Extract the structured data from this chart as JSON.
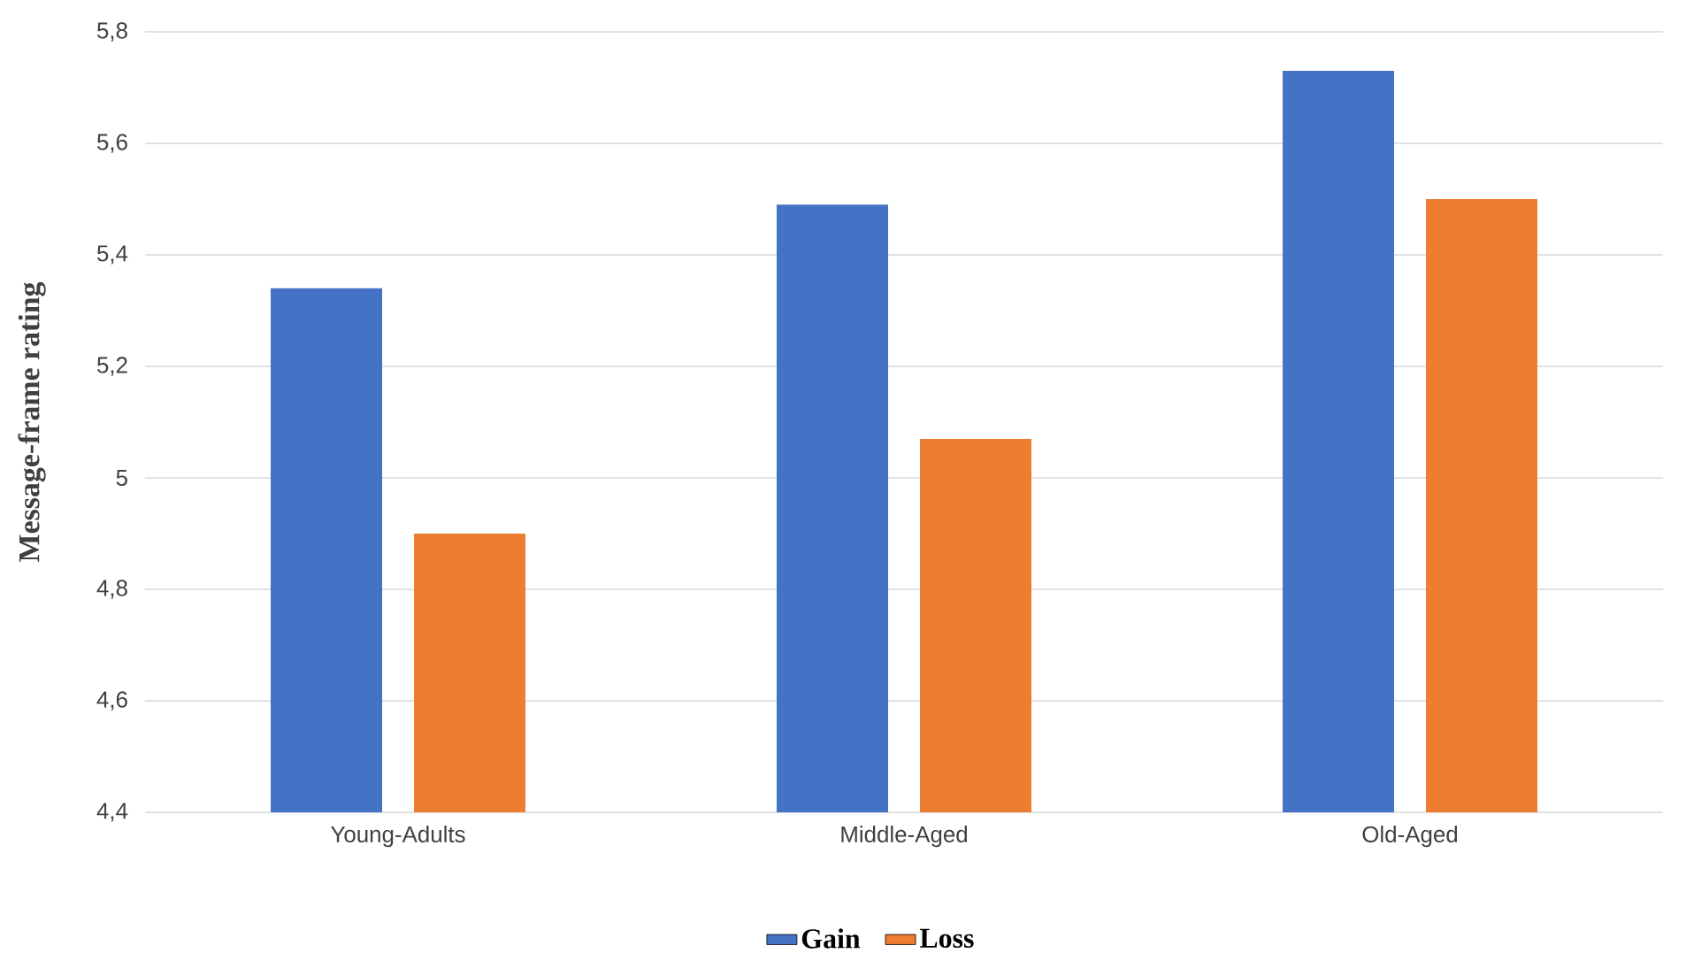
{
  "chart_data": {
    "type": "bar",
    "ylabel": "Message-frame rating",
    "categories": [
      "Young-Adults",
      "Middle-Aged",
      "Old-Aged"
    ],
    "series": [
      {
        "name": "Gain",
        "color": "#4472c4",
        "values": [
          5.34,
          5.49,
          5.73
        ]
      },
      {
        "name": "Loss",
        "color": "#ed7d31",
        "values": [
          4.9,
          5.07,
          5.5
        ]
      }
    ],
    "ylim": [
      4.4,
      5.8
    ],
    "yticks": [
      {
        "value": 4.4,
        "label": "4,4"
      },
      {
        "value": 4.6,
        "label": "4,6"
      },
      {
        "value": 4.8,
        "label": "4,8"
      },
      5,
      {
        "value": 5.2,
        "label": "5,2"
      },
      {
        "value": 5.4,
        "label": "5,4"
      },
      {
        "value": 5.6,
        "label": "5,6"
      },
      {
        "value": 5.8,
        "label": "5,8"
      }
    ],
    "grid": "y",
    "legend": "bottom"
  }
}
